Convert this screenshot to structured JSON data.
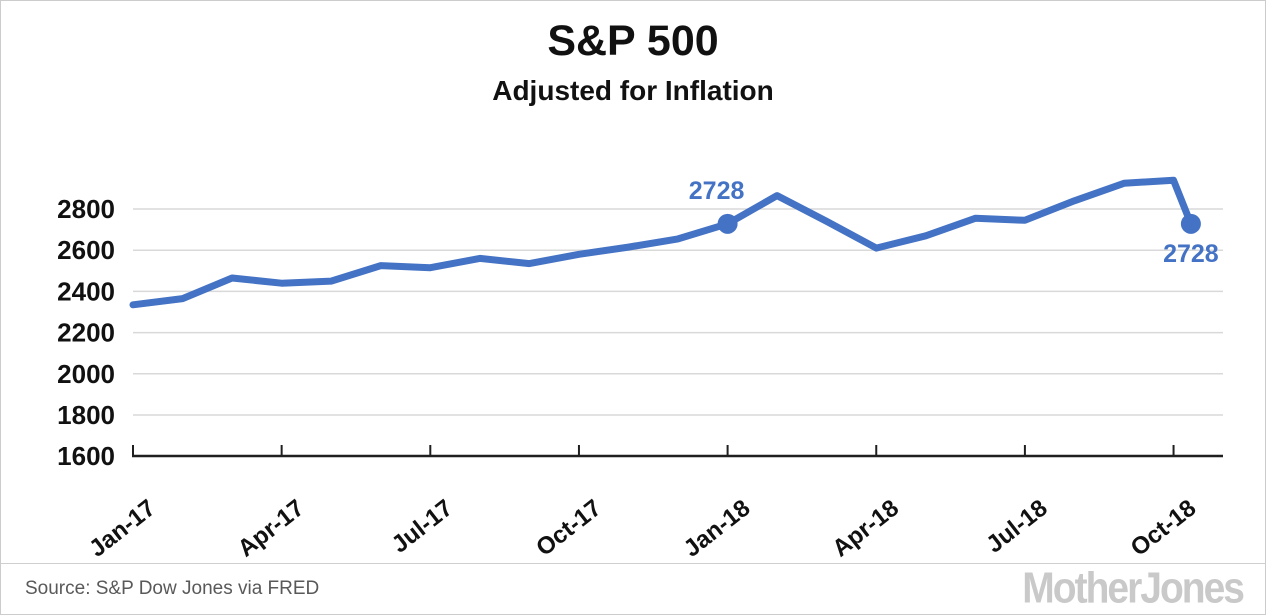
{
  "header": {
    "title": "S&P 500",
    "subtitle": "Adjusted for Inflation"
  },
  "footer": {
    "source": "Source: S&P Dow Jones via FRED",
    "logo": "MotherJones"
  },
  "colors": {
    "line": "#4472C4",
    "annotation_text": "#4472C4",
    "gridline": "#d9d9d9",
    "axis": "#1f1f1f",
    "tick_label": "#111111",
    "source_text": "#595959",
    "logo_gray": "#c9c9c9"
  },
  "chart_data": {
    "type": "line",
    "title": "S&P 500",
    "subtitle": "Adjusted for Inflation",
    "x": [
      "Jan-17",
      "Feb-17",
      "Mar-17",
      "Apr-17",
      "May-17",
      "Jun-17",
      "Jul-17",
      "Aug-17",
      "Sep-17",
      "Oct-17",
      "Nov-17",
      "Dec-17",
      "Jan-18",
      "Feb-18",
      "Mar-18",
      "Apr-18",
      "May-18",
      "Jun-18",
      "Jul-18",
      "Aug-18",
      "Sep-18",
      "Oct-18",
      "Nov-18"
    ],
    "values": [
      2335,
      2365,
      2465,
      2440,
      2450,
      2525,
      2515,
      2560,
      2535,
      2580,
      2615,
      2655,
      2728,
      2865,
      2740,
      2610,
      2670,
      2755,
      2745,
      2840,
      2925,
      2940,
      2728
    ],
    "x_month_positions": [
      0,
      1,
      2,
      3,
      4,
      5,
      6,
      7,
      8,
      9,
      10,
      11,
      12,
      13,
      14,
      15,
      16,
      17,
      18,
      19,
      20,
      21,
      21.35
    ],
    "x_tick_labels": [
      "Jan-17",
      "Apr-17",
      "Jul-17",
      "Oct-17",
      "Jan-18",
      "Apr-18",
      "Jul-18",
      "Oct-18"
    ],
    "x_tick_month_indices": [
      0,
      3,
      6,
      9,
      12,
      15,
      18,
      21
    ],
    "y_ticks": [
      1600,
      1800,
      2000,
      2200,
      2400,
      2600,
      2800
    ],
    "ylim": [
      1600,
      2960
    ],
    "grid": "horizontal-only",
    "legend": "none",
    "annotations": [
      {
        "label": "2728",
        "month_index": 12,
        "value": 2728,
        "placement": "above"
      },
      {
        "label": "2728",
        "month_index": 21.35,
        "value": 2728,
        "placement": "below"
      }
    ]
  }
}
